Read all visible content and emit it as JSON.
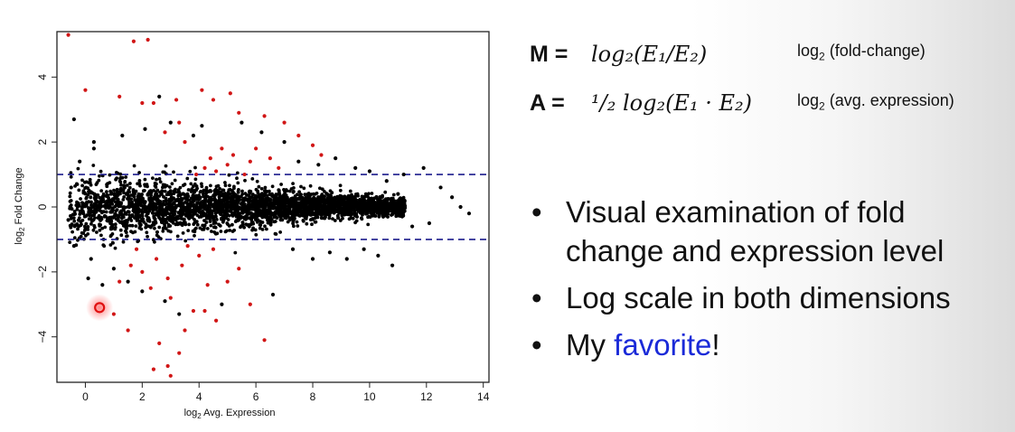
{
  "chart_data": {
    "type": "scatter",
    "xlabel_prefix": "log",
    "xlabel_sub": "2",
    "xlabel_rest": " Avg. Expression",
    "ylabel_prefix": "log",
    "ylabel_sub": "2",
    "ylabel_rest": " Fold Change",
    "xlim": [
      -1.0,
      14.2
    ],
    "ylim": [
      -5.4,
      5.4
    ],
    "xticks": [
      0,
      2,
      4,
      6,
      8,
      10,
      12,
      14
    ],
    "yticks": [
      -4,
      -2,
      0,
      2,
      4
    ],
    "thresholds": [
      1,
      -1
    ],
    "highlight_point": {
      "x": 0.5,
      "y": -3.1
    },
    "series": [
      {
        "role": "not significant",
        "color": "#000000",
        "points": [
          [
            -0.4,
            2.7
          ],
          [
            1.0,
            -1.9
          ],
          [
            0.6,
            -2.4
          ],
          [
            0.3,
            2.0
          ],
          [
            2.6,
            3.4
          ],
          [
            3.8,
            2.2
          ],
          [
            5.5,
            2.6
          ],
          [
            0.1,
            -2.2
          ],
          [
            10.6,
            0.8
          ],
          [
            11.2,
            1.0
          ],
          [
            11.9,
            1.2
          ],
          [
            12.9,
            0.3
          ],
          [
            13.5,
            -0.2
          ],
          [
            12.5,
            0.6
          ],
          [
            11.5,
            -0.6
          ],
          [
            10.8,
            -1.8
          ],
          [
            10.3,
            -1.5
          ],
          [
            9.8,
            -1.3
          ],
          [
            9.2,
            -1.6
          ],
          [
            8.6,
            -1.4
          ],
          [
            8.0,
            -1.6
          ],
          [
            7.3,
            -1.3
          ],
          [
            7.5,
            1.4
          ],
          [
            8.2,
            1.3
          ],
          [
            8.8,
            1.5
          ],
          [
            9.5,
            1.2
          ],
          [
            10.0,
            1.1
          ],
          [
            -0.2,
            1.4
          ],
          [
            0.3,
            1.8
          ],
          [
            -0.4,
            -1.2
          ],
          [
            0.2,
            -1.6
          ],
          [
            1.5,
            -2.3
          ],
          [
            2.0,
            -2.6
          ],
          [
            2.8,
            -2.9
          ],
          [
            3.3,
            -3.3
          ],
          [
            4.8,
            -3.0
          ],
          [
            6.6,
            -2.7
          ],
          [
            1.3,
            2.2
          ],
          [
            2.1,
            2.4
          ],
          [
            3.0,
            2.6
          ],
          [
            4.1,
            2.5
          ],
          [
            6.2,
            2.3
          ],
          [
            7.0,
            2.0
          ],
          [
            -0.5,
            0.6
          ],
          [
            -0.6,
            -0.4
          ],
          [
            12.1,
            -0.5
          ],
          [
            11.0,
            0.4
          ],
          [
            13.2,
            0.0
          ]
        ]
      },
      {
        "role": "significant",
        "color": "#d11616",
        "points": [
          [
            -0.6,
            5.3
          ],
          [
            1.7,
            5.1
          ],
          [
            2.2,
            5.15
          ],
          [
            0.0,
            3.6
          ],
          [
            1.2,
            3.4
          ],
          [
            2.0,
            3.2
          ],
          [
            2.4,
            3.2
          ],
          [
            3.2,
            3.3
          ],
          [
            4.1,
            3.6
          ],
          [
            4.5,
            3.3
          ],
          [
            5.1,
            3.5
          ],
          [
            5.4,
            2.9
          ],
          [
            6.3,
            2.8
          ],
          [
            7.0,
            2.6
          ],
          [
            7.5,
            2.2
          ],
          [
            2.8,
            2.3
          ],
          [
            3.5,
            2.0
          ],
          [
            6.0,
            1.8
          ],
          [
            8.0,
            1.9
          ],
          [
            8.3,
            1.6
          ],
          [
            3.3,
            2.6
          ],
          [
            4.4,
            1.5
          ],
          [
            4.8,
            1.8
          ],
          [
            5.2,
            1.6
          ],
          [
            5.8,
            1.4
          ],
          [
            6.5,
            1.5
          ],
          [
            4.2,
            1.2
          ],
          [
            4.6,
            1.1
          ],
          [
            5.0,
            1.3
          ],
          [
            3.9,
            1.0
          ],
          [
            6.8,
            1.2
          ],
          [
            5.6,
            1.0
          ],
          [
            1.2,
            -2.3
          ],
          [
            1.6,
            -1.8
          ],
          [
            2.0,
            -2.0
          ],
          [
            2.5,
            -1.6
          ],
          [
            2.9,
            -2.2
          ],
          [
            3.4,
            -1.8
          ],
          [
            4.0,
            -1.5
          ],
          [
            4.5,
            -1.3
          ],
          [
            3.0,
            -2.8
          ],
          [
            2.3,
            -2.5
          ],
          [
            3.8,
            -3.2
          ],
          [
            3.5,
            -3.8
          ],
          [
            4.2,
            -3.2
          ],
          [
            4.6,
            -3.5
          ],
          [
            2.6,
            -4.2
          ],
          [
            2.9,
            -4.9
          ],
          [
            3.3,
            -4.5
          ],
          [
            2.4,
            -5.0
          ],
          [
            3.0,
            -5.2
          ],
          [
            1.5,
            -3.8
          ],
          [
            1.0,
            -3.3
          ],
          [
            6.3,
            -4.1
          ],
          [
            5.8,
            -3.0
          ],
          [
            5.0,
            -2.3
          ],
          [
            1.8,
            -1.3
          ],
          [
            3.6,
            -1.2
          ],
          [
            4.3,
            -2.4
          ],
          [
            5.4,
            -1.9
          ]
        ]
      }
    ]
  },
  "equations": [
    {
      "label": "M =",
      "formula": "log₂(E₁/E₂)",
      "desc_prefix": "log",
      "desc_sub": "2",
      "desc_rest": " (fold-change)"
    },
    {
      "label": "A =",
      "formula": "¹/₂ log₂(E₁ · E₂)",
      "desc_prefix": "log",
      "desc_sub": "2",
      "desc_rest": " (avg. expression)"
    }
  ],
  "bullets": [
    {
      "text": "Visual examination of fold change and expression level"
    },
    {
      "text": "Log scale in both dimensions"
    },
    {
      "text_before": "My ",
      "highlight": "favorite",
      "text_after": "!"
    }
  ],
  "colors": {
    "threshold_line": "#1c1c8c",
    "highlight_text": "#1a2ad8",
    "highlight_circle": "#e01010"
  }
}
